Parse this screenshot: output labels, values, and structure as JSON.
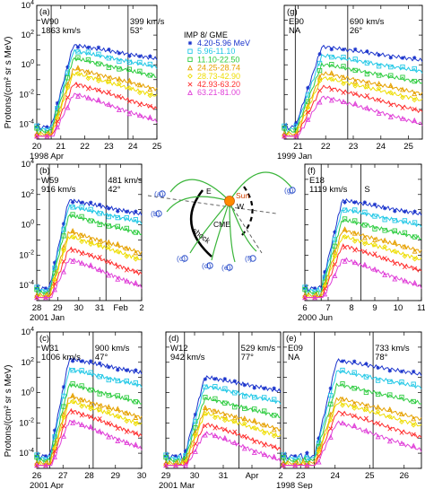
{
  "figure": {
    "y_axis_label": "Protons/(cm² sr s MeV)"
  },
  "legend": {
    "title": "IMP 8/ GME",
    "entries": [
      {
        "label": "4.20-5.96 MeV",
        "color": "#1a33cc",
        "marker": "asterisk"
      },
      {
        "label": "5.96-11.10",
        "color": "#22c8e6",
        "marker": "square"
      },
      {
        "label": "11.10-22.50",
        "color": "#2ecc40",
        "marker": "square"
      },
      {
        "label": "24.25-28.74",
        "color": "#e6a100",
        "marker": "triangle"
      },
      {
        "label": "28.73-42.90",
        "color": "#eedd00",
        "marker": "diamond"
      },
      {
        "label": "42.93-63.20",
        "color": "#ff3030",
        "marker": "x"
      },
      {
        "label": "63.21-81.00",
        "color": "#e040d8",
        "marker": "triangle"
      }
    ]
  },
  "diagram": {
    "sun_label": "Sun",
    "east_label": "E",
    "west_label": "W",
    "cme_label": "CME",
    "shock_label": "shock",
    "points": [
      "(a)",
      "(b)",
      "(c)",
      "(d)",
      "(e)",
      "(f)",
      "(g)"
    ]
  },
  "chart_data": [
    {
      "id": "a",
      "panel_label": "(a)",
      "type": "line",
      "location": "W90",
      "speed": "1863 km/s",
      "shock": {
        "speed": "399 km/s",
        "angle": "53°"
      },
      "xlim": [
        20,
        25
      ],
      "ylim_log10": [
        -5,
        4
      ],
      "xticks": [
        "20",
        "21",
        "22",
        "23",
        "24",
        "25"
      ],
      "date_label": "1998 Apr",
      "event_lines": [
        20.6,
        23.8
      ],
      "peak_y": [
        1.3,
        0.9,
        0.4,
        -0.3,
        -0.6,
        -1.3,
        -2.0
      ]
    },
    {
      "id": "g",
      "panel_label": "(g)",
      "type": "line",
      "location": "E90",
      "speed_note": "NA",
      "shock": {
        "speed": "690 km/s",
        "angle": "26°"
      },
      "xlim": [
        20.5,
        25.5
      ],
      "ylim_log10": [
        -5,
        4
      ],
      "xticks": [
        "21",
        "22",
        "23",
        "24",
        "25"
      ],
      "date_label": "1999 Jan",
      "event_lines": [
        20.9,
        22.8
      ],
      "peak_y": [
        1.2,
        0.6,
        0.0,
        -0.6,
        -0.9,
        -1.5,
        -2.2
      ]
    },
    {
      "id": "b",
      "panel_label": "(b)",
      "type": "line",
      "location": "W59",
      "speed": "916 km/s",
      "shock": {
        "speed": "481 km/s",
        "angle": "42°"
      },
      "xlim": [
        28,
        33
      ],
      "ylim_log10": [
        -5,
        4
      ],
      "xticks": [
        "28",
        "29",
        "30",
        "31",
        "Feb",
        "2"
      ],
      "date_label": "2001 Jan",
      "event_lines": [
        28.6,
        31.3
      ],
      "peak_y": [
        1.6,
        1.2,
        0.6,
        -0.5,
        -0.8,
        -1.6,
        -2.3
      ]
    },
    {
      "id": "f",
      "panel_label": "(f)",
      "type": "line",
      "location": "E18",
      "speed": "1119 km/s",
      "shock": {
        "label": "S"
      },
      "xlim": [
        6,
        11
      ],
      "ylim_log10": [
        -5,
        4
      ],
      "xticks": [
        "6",
        "7",
        "8",
        "9",
        "10",
        "11"
      ],
      "date_label": "2000 Jun",
      "event_lines": [
        6.7,
        8.4
      ],
      "peak_y": [
        1.6,
        1.0,
        0.3,
        -0.4,
        -0.8,
        -1.4,
        -2.3
      ]
    },
    {
      "id": "c",
      "panel_label": "(c)",
      "type": "line",
      "location": "W31",
      "speed": "1006 km/s",
      "shock": {
        "speed": "900 km/s",
        "angle": "47°"
      },
      "xlim": [
        26,
        30
      ],
      "ylim_log10": [
        -5,
        4
      ],
      "xticks": [
        "26",
        "27",
        "28",
        "29",
        "30"
      ],
      "date_label": "2001 Apr",
      "event_lines": [
        26.5,
        28.15
      ],
      "peak_y": [
        2.2,
        1.5,
        0.5,
        -0.3,
        -0.6,
        -1.2,
        -1.9
      ]
    },
    {
      "id": "d",
      "panel_label": "(d)",
      "type": "line",
      "location": "W12",
      "speed": "942 km/s",
      "shock": {
        "speed": "529 km/s",
        "angle": "77°"
      },
      "xlim": [
        29,
        33
      ],
      "ylim_log10": [
        -5,
        4
      ],
      "xticks": [
        "29",
        "30",
        "31",
        "Apr",
        "2"
      ],
      "date_label": "2001 Mar",
      "event_lines": [
        29.65,
        31.55
      ],
      "peak_y": [
        1.0,
        0.4,
        -0.4,
        -1.1,
        -1.4,
        -2.1,
        -2.7
      ]
    },
    {
      "id": "e",
      "panel_label": "(e)",
      "type": "line",
      "location": "E09",
      "speed_note": "NA",
      "shock": {
        "speed": "733 km/s",
        "angle": "78°"
      },
      "xlim": [
        22.5,
        26.5
      ],
      "ylim_log10": [
        -5,
        4
      ],
      "xticks": [
        "23",
        "24",
        "25",
        "26"
      ],
      "date_label": "1998 Sep",
      "event_lines": [
        23.4,
        25.1
      ],
      "peak_y": [
        2.1,
        1.4,
        0.5,
        -0.4,
        -0.7,
        -1.3,
        -2.0
      ]
    }
  ]
}
